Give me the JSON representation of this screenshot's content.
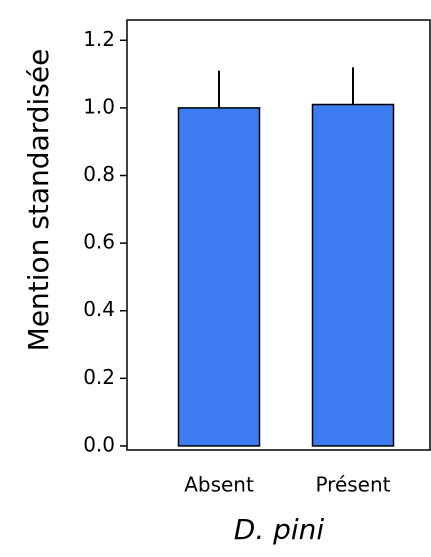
{
  "chart_data": {
    "type": "bar",
    "ylabel": "Mention standardisée",
    "xlabel": "D. pini",
    "categories": [
      "Absent",
      "Présent"
    ],
    "values": [
      1.0,
      1.01
    ],
    "errors": [
      0.11,
      0.11
    ],
    "color": "#3d7cf0",
    "ylim": [
      -0.012,
      1.26
    ],
    "yticks": [
      {
        "value": 0,
        "label": "0.0"
      },
      {
        "value": 0.2,
        "label": "0.2"
      },
      {
        "value": 0.4,
        "label": "0.4"
      },
      {
        "value": 0.6,
        "label": "0.6"
      },
      {
        "value": 0.8,
        "label": "0.8"
      },
      {
        "value": 1.0,
        "label": "1.0"
      },
      {
        "value": 1.2,
        "label": "1.2"
      }
    ]
  }
}
